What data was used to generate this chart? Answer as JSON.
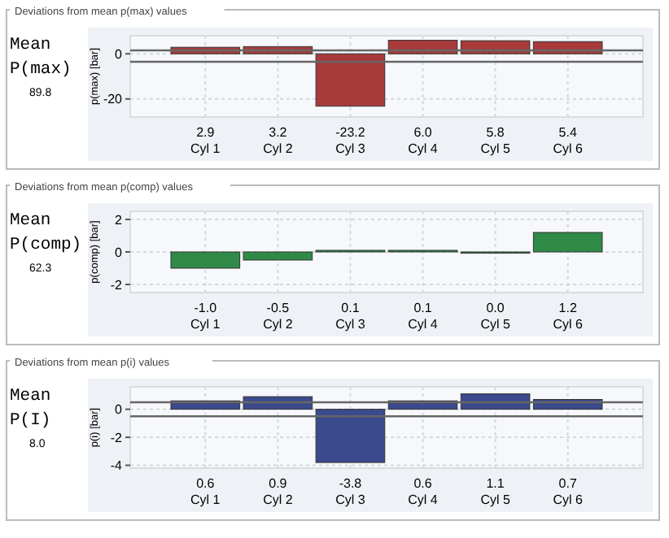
{
  "chart_data": [
    {
      "type": "bar",
      "title": "Deviations from mean p(max) values",
      "ylabel": "p(max) [bar]",
      "annotations": [
        "Mean P(max)",
        "89.8"
      ],
      "categories": [
        "Cyl 1",
        "Cyl 2",
        "Cyl 3",
        "Cyl 4",
        "Cyl 5",
        "Cyl 6"
      ],
      "values": [
        2.9,
        3.2,
        -23.2,
        6.0,
        5.8,
        5.4
      ],
      "value_labels": [
        "2.9",
        "3.2",
        "-23.2",
        "6.0",
        "5.8",
        "5.4"
      ],
      "color": "#a83a3a",
      "ylim": [
        -28,
        8
      ],
      "yticks": [
        -20,
        0
      ],
      "grid": true,
      "ref_lines": [
        {
          "axis": "y",
          "value": 1.5,
          "color": "#666666"
        },
        {
          "axis": "y",
          "value": -3.5,
          "color": "#666666"
        }
      ]
    },
    {
      "type": "bar",
      "title": "Deviations from mean p(comp) values",
      "ylabel": "p(comp) [bar]",
      "annotations": [
        "Mean P(comp)",
        "62.3"
      ],
      "categories": [
        "Cyl 1",
        "Cyl 2",
        "Cyl 3",
        "Cyl 4",
        "Cyl 5",
        "Cyl 6"
      ],
      "values": [
        -1.0,
        -0.5,
        0.1,
        0.1,
        0.0,
        1.2
      ],
      "value_labels": [
        "-1.0",
        "-0.5",
        "0.1",
        "0.1",
        "0.0",
        "1.2"
      ],
      "color": "#2f8a48",
      "ylim": [
        -2.5,
        2.5
      ],
      "yticks": [
        -2,
        0,
        2
      ],
      "grid": true
    },
    {
      "type": "bar",
      "title": "Deviations from mean p(i) values",
      "ylabel": "p(i) [bar]",
      "annotations": [
        "Mean P(I)",
        "8.0"
      ],
      "categories": [
        "Cyl 1",
        "Cyl 2",
        "Cyl 3",
        "Cyl 4",
        "Cyl 5",
        "Cyl 6"
      ],
      "values": [
        0.6,
        0.9,
        -3.8,
        0.6,
        1.1,
        0.7
      ],
      "value_labels": [
        "0.6",
        "0.9",
        "-3.8",
        "0.6",
        "1.1",
        "0.7"
      ],
      "color": "#3b4a8c",
      "ylim": [
        -4.2,
        1.6
      ],
      "yticks": [
        -4,
        -2,
        0
      ],
      "grid": true,
      "ref_lines": [
        {
          "axis": "y",
          "value": 0.5,
          "color": "#666666"
        },
        {
          "axis": "y",
          "value": -0.5,
          "color": "#666666"
        }
      ]
    }
  ]
}
